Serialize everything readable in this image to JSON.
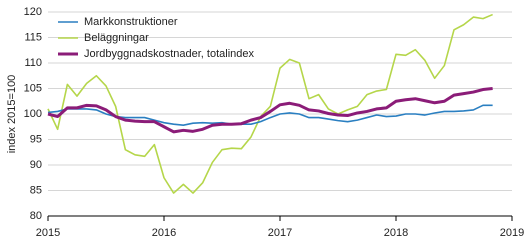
{
  "chart_data": {
    "type": "line",
    "y_label": "index 2015=100",
    "x": [
      2015,
      2015.083,
      2015.167,
      2015.25,
      2015.333,
      2015.417,
      2015.5,
      2015.583,
      2015.667,
      2015.75,
      2015.833,
      2015.917,
      2016,
      2016.083,
      2016.167,
      2016.25,
      2016.333,
      2016.417,
      2016.5,
      2016.583,
      2016.667,
      2016.75,
      2016.833,
      2016.917,
      2017,
      2017.083,
      2017.167,
      2017.25,
      2017.333,
      2017.417,
      2017.5,
      2017.583,
      2017.667,
      2017.75,
      2017.833,
      2017.917,
      2018,
      2018.083,
      2018.167,
      2018.25,
      2018.333,
      2018.417,
      2018.5,
      2018.583,
      2018.667,
      2018.75,
      2018.833
    ],
    "series": [
      {
        "name": "Markkonstruktioner",
        "color": "#2a7fc1",
        "values": [
          100.3,
          100.5,
          101,
          101,
          101,
          100.8,
          100,
          99.5,
          99.3,
          99.3,
          99.3,
          98.8,
          98.3,
          98,
          97.8,
          98.2,
          98.3,
          98.2,
          98.3,
          98,
          98,
          98,
          98.5,
          99.3,
          100,
          100.2,
          100,
          99.3,
          99.3,
          99,
          98.7,
          98.5,
          98.8,
          99.3,
          99.8,
          99.5,
          99.6,
          100,
          100,
          99.8,
          100.2,
          100.5,
          100.5,
          100.6,
          100.8,
          101.7,
          101.7
        ]
      },
      {
        "name": "Beläggningar",
        "color": "#b5d64a",
        "values": [
          101,
          97,
          105.8,
          103.5,
          106,
          107.5,
          105.5,
          101.5,
          93,
          92,
          91.7,
          94,
          87.5,
          84.5,
          86.2,
          84.5,
          86.5,
          90.5,
          93,
          93.3,
          93.2,
          95.5,
          99.5,
          101.5,
          109,
          110.7,
          110,
          103,
          103.8,
          101,
          100,
          100.8,
          101.5,
          103.8,
          104.5,
          104.8,
          111.7,
          111.5,
          112.6,
          110.5,
          107,
          109.5,
          116.5,
          117.5,
          119,
          118.7,
          119.5
        ]
      },
      {
        "name": "Jordbyggnadskostnader, totalindex",
        "color": "#8b1c78",
        "values": [
          100,
          99.5,
          101.2,
          101.2,
          101.7,
          101.6,
          100.8,
          99.5,
          98.8,
          98.6,
          98.5,
          98.5,
          97.5,
          96.5,
          96.8,
          96.6,
          97,
          97.8,
          98,
          98,
          98.1,
          98.8,
          99.3,
          100.5,
          101.8,
          102.1,
          101.7,
          100.8,
          100.6,
          100.1,
          99.8,
          99.7,
          100.2,
          100.5,
          101,
          101.2,
          102.5,
          102.8,
          103,
          102.6,
          102.2,
          102.5,
          103.7,
          104,
          104.3,
          104.8,
          105
        ]
      }
    ],
    "xlim": [
      2015,
      2019
    ],
    "xticks": [
      2015,
      2016,
      2017,
      2018,
      2019
    ],
    "ylim": [
      80,
      120
    ],
    "yticks": [
      80,
      85,
      90,
      95,
      100,
      105,
      110,
      115,
      120
    ],
    "grid": true,
    "legend": "top-left"
  }
}
